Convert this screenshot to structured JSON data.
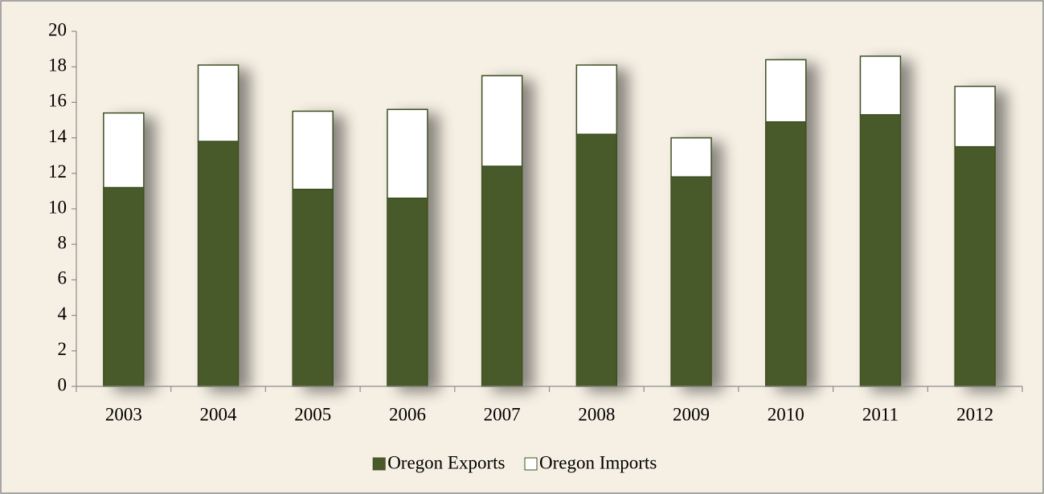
{
  "chart_data": {
    "type": "stacked_bar",
    "categories": [
      "2003",
      "2004",
      "2005",
      "2006",
      "2007",
      "2008",
      "2009",
      "2010",
      "2011",
      "2012"
    ],
    "series": [
      {
        "name": "Oregon Exports",
        "color": "#4a5a2a",
        "values": [
          11.2,
          13.8,
          11.1,
          10.6,
          12.4,
          14.2,
          11.8,
          14.9,
          15.3,
          13.5
        ]
      },
      {
        "name": "Oregon Imports",
        "color": "#ffffff",
        "values": [
          4.2,
          4.3,
          4.4,
          5.0,
          5.1,
          3.9,
          2.2,
          3.5,
          3.3,
          3.4
        ]
      }
    ],
    "ylim": [
      0,
      20
    ],
    "yticks": [
      0,
      2,
      4,
      6,
      8,
      10,
      12,
      14,
      16,
      18,
      20
    ],
    "legend": "bottom"
  }
}
